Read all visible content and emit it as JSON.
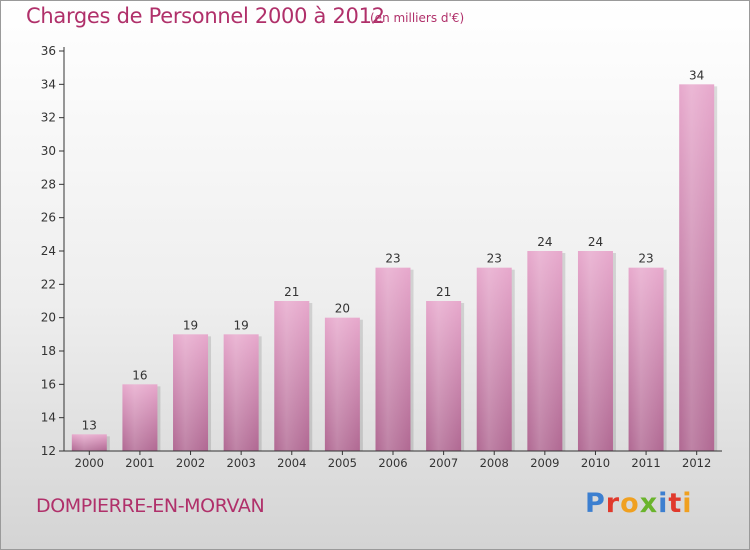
{
  "title": "Charges de Personnel 2000 à 2012",
  "subtitle": "(en milliers d'€)",
  "town": "DOMPIERRE-EN-MORVAN",
  "logo": {
    "text": "Proxiti",
    "colors": [
      "#3c7fd0",
      "#e0392c",
      "#f0a020",
      "#6ab42c",
      "#3c7fd0",
      "#e0392c",
      "#f0a020"
    ]
  },
  "colors": {
    "bar_light": "#e7a8cc",
    "bar_dark": "#b06892",
    "text": "#b0306a",
    "axis": "#333333"
  },
  "chart_data": {
    "type": "bar",
    "title": "Charges de Personnel 2000 à 2012",
    "subtitle": "(en milliers d'€)",
    "categories": [
      "2000",
      "2001",
      "2002",
      "2003",
      "2004",
      "2005",
      "2006",
      "2007",
      "2008",
      "2009",
      "2010",
      "2011",
      "2012"
    ],
    "values": [
      13,
      16,
      19,
      19,
      21,
      20,
      23,
      21,
      23,
      24,
      24,
      23,
      34
    ],
    "ylim": [
      12,
      36
    ],
    "yticks": [
      12,
      14,
      16,
      18,
      20,
      22,
      24,
      26,
      28,
      30,
      32,
      34,
      36
    ],
    "grid": false,
    "data_labels": true
  }
}
